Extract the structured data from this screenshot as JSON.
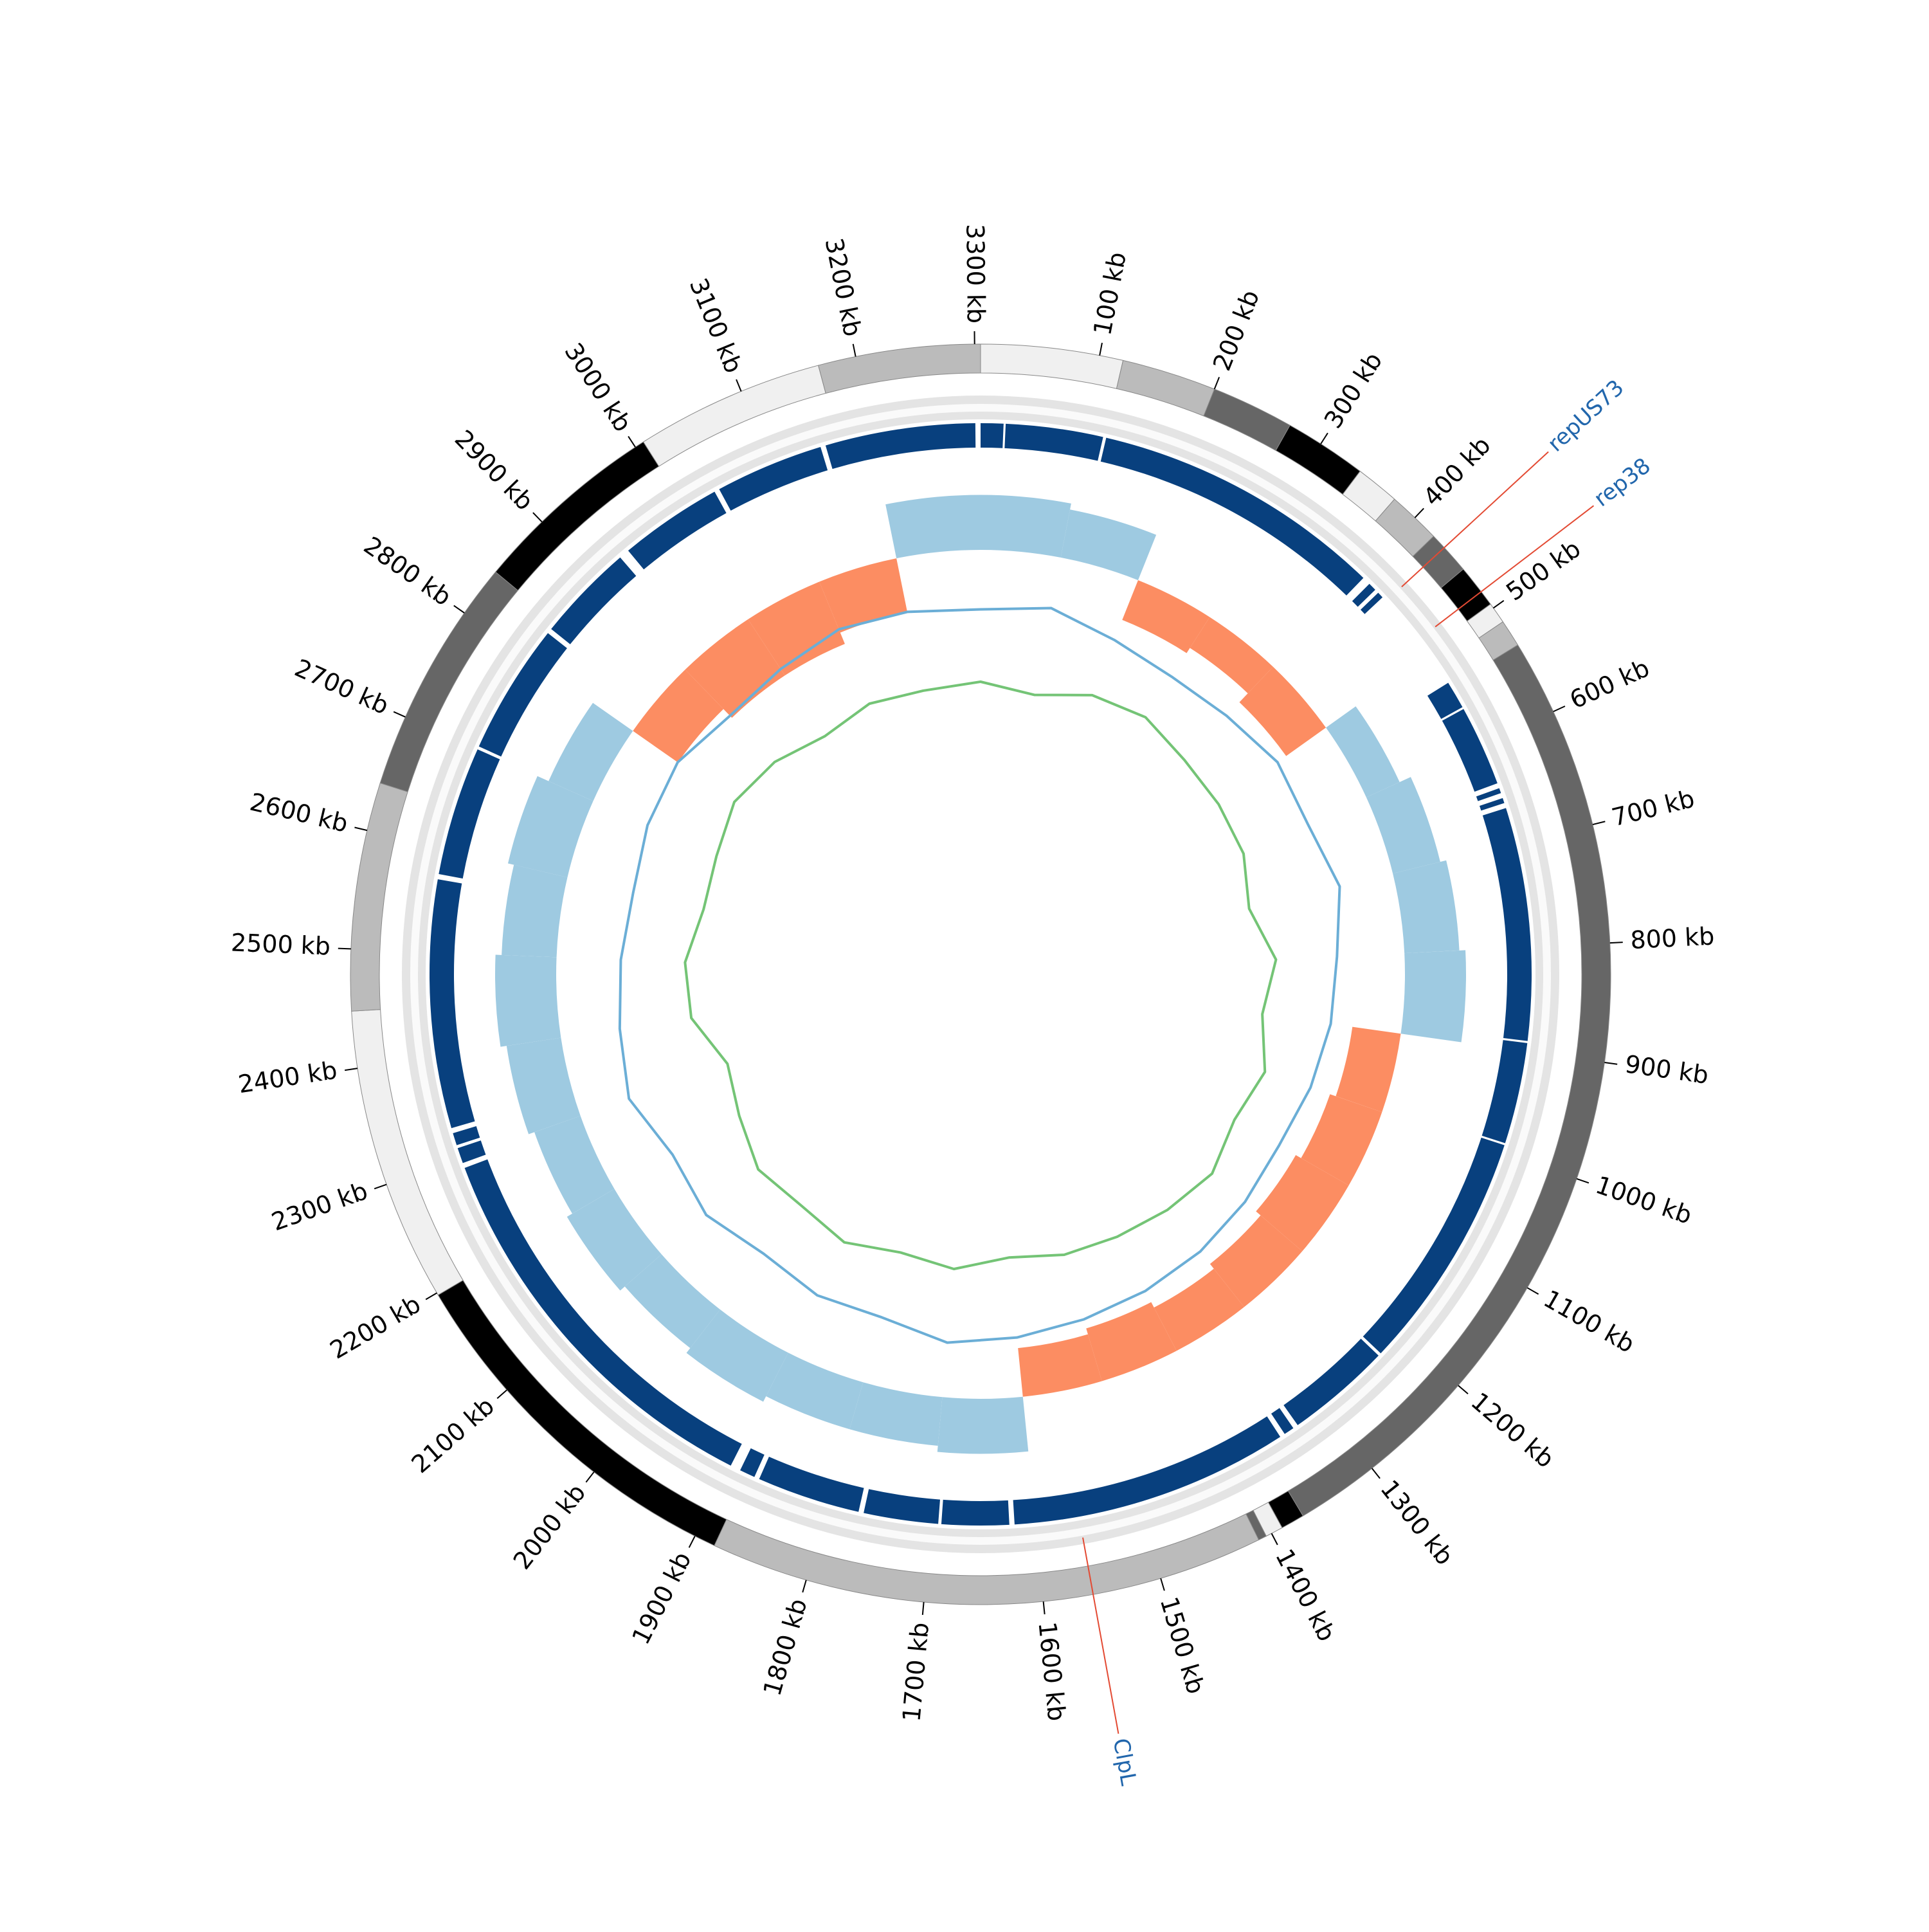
{
  "chart_data": {
    "type": "circos",
    "xlim": [
      0,
      3305
    ],
    "xticks": [
      {
        "value": 100,
        "label": "100 kb"
      },
      {
        "value": 200,
        "label": "200 kb"
      },
      {
        "value": 300,
        "label": "300 kb"
      },
      {
        "value": 400,
        "label": "400 kb"
      },
      {
        "value": 500,
        "label": "500 kb"
      },
      {
        "value": 600,
        "label": "600 kb"
      },
      {
        "value": 700,
        "label": "700 kb"
      },
      {
        "value": 800,
        "label": "800 kb"
      },
      {
        "value": 900,
        "label": "900 kb"
      },
      {
        "value": 1000,
        "label": "1000 kb"
      },
      {
        "value": 1100,
        "label": "1100 kb"
      },
      {
        "value": 1200,
        "label": "1200 kb"
      },
      {
        "value": 1300,
        "label": "1300 kb"
      },
      {
        "value": 1400,
        "label": "1400 kb"
      },
      {
        "value": 1500,
        "label": "1500 kb"
      },
      {
        "value": 1600,
        "label": "1600 kb"
      },
      {
        "value": 1700,
        "label": "1700 kb"
      },
      {
        "value": 1800,
        "label": "1800 kb"
      },
      {
        "value": 1900,
        "label": "1900 kb"
      },
      {
        "value": 2000,
        "label": "2000 kb"
      },
      {
        "value": 2100,
        "label": "2100 kb"
      },
      {
        "value": 2200,
        "label": "2200 kb"
      },
      {
        "value": 2300,
        "label": "2300 kb"
      },
      {
        "value": 2400,
        "label": "2400 kb"
      },
      {
        "value": 2500,
        "label": "2500 kb"
      },
      {
        "value": 2600,
        "label": "2600 kb"
      },
      {
        "value": 2700,
        "label": "2700 kb"
      },
      {
        "value": 2800,
        "label": "2800 kb"
      },
      {
        "value": 2900,
        "label": "2900 kb"
      },
      {
        "value": 3000,
        "label": "3000 kb"
      },
      {
        "value": 3100,
        "label": "3100 kb"
      },
      {
        "value": 3200,
        "label": "3200 kb"
      },
      {
        "value": 3300,
        "label": "3300 kb"
      }
    ],
    "segments": [
      {
        "start": 0,
        "end": 120,
        "color": "#f0f0f0"
      },
      {
        "start": 120,
        "end": 200,
        "color": "#bbbbbb"
      },
      {
        "start": 200,
        "end": 270,
        "color": "#666666"
      },
      {
        "start": 270,
        "end": 340,
        "color": "#000000"
      },
      {
        "start": 340,
        "end": 377,
        "color": "#f0f0f0"
      },
      {
        "start": 377,
        "end": 422,
        "color": "#bbbbbb"
      },
      {
        "start": 422,
        "end": 459,
        "color": "#666666"
      },
      {
        "start": 459,
        "end": 496,
        "color": "#000000"
      },
      {
        "start": 496,
        "end": 514,
        "color": "#f0f0f0"
      },
      {
        "start": 514,
        "end": 537,
        "color": "#bbbbbb"
      },
      {
        "start": 537,
        "end": 1370,
        "color": "#666666"
      },
      {
        "start": 1370,
        "end": 1390,
        "color": "#000000"
      },
      {
        "start": 1390,
        "end": 1405,
        "color": "#f0f0f0"
      },
      {
        "start": 1405,
        "end": 1412,
        "color": "#666666"
      },
      {
        "start": 1412,
        "end": 1882,
        "color": "#bbbbbb"
      },
      {
        "start": 1882,
        "end": 2198,
        "color": "#000000"
      },
      {
        "start": 2198,
        "end": 2448,
        "color": "#f0f0f0"
      },
      {
        "start": 2448,
        "end": 2641,
        "color": "#bbbbbb"
      },
      {
        "start": 2641,
        "end": 2843,
        "color": "#666666"
      },
      {
        "start": 2843,
        "end": 3008,
        "color": "#000000"
      },
      {
        "start": 3008,
        "end": 3168,
        "color": "#f0f0f0"
      },
      {
        "start": 3168,
        "end": 3305,
        "color": "#bbbbbb"
      }
    ],
    "blocks_color": "#08407e",
    "blocks": [
      [
        0,
        22
      ],
      [
        24,
        118
      ],
      [
        121,
        404
      ],
      [
        412,
        420
      ],
      [
        424,
        430
      ],
      [
        533,
        560
      ],
      [
        562,
        640
      ],
      [
        645,
        650
      ],
      [
        655,
        660
      ],
      [
        665,
        890
      ],
      [
        892,
        990
      ],
      [
        992,
        1225
      ],
      [
        1228,
        1330
      ],
      [
        1335,
        1345
      ],
      [
        1350,
        1620
      ],
      [
        1625,
        1690
      ],
      [
        1693,
        1765
      ],
      [
        1770,
        1870
      ],
      [
        1875,
        1890
      ],
      [
        1900,
        2290
      ],
      [
        2295,
        2310
      ],
      [
        2313,
        2325
      ],
      [
        2330,
        2570
      ],
      [
        2575,
        2700
      ],
      [
        2703,
        2830
      ],
      [
        2835,
        2930
      ],
      [
        2940,
        3040
      ],
      [
        3045,
        3150
      ],
      [
        3155,
        3300
      ]
    ],
    "x": [
      0,
      100,
      200,
      300,
      400,
      500,
      600,
      700,
      800,
      900,
      1000,
      1100,
      1200,
      1300,
      1400,
      1500,
      1600,
      1700,
      1800,
      1900,
      2000,
      2100,
      2200,
      2300,
      2400,
      2500,
      2600,
      2700,
      2800,
      2900,
      3000,
      3100,
      3200
    ],
    "skew": {
      "positive_color": "#9ecae1",
      "negative_color": "#fc8d62",
      "values": [
        45,
        40,
        -35,
        -30,
        -40,
        30,
        40,
        45,
        50,
        -40,
        -45,
        -50,
        -45,
        -40,
        -45,
        -40,
        45,
        40,
        40,
        45,
        40,
        45,
        40,
        45,
        50,
        45,
        50,
        40,
        -45,
        -55,
        -55,
        -45,
        45
      ]
    },
    "series": [
      {
        "color": "#6baed6",
        "values": [
          25,
          30,
          22,
          18,
          20,
          25,
          22,
          28,
          20,
          18,
          15,
          12,
          15,
          18,
          20,
          22,
          25,
          28,
          20,
          22,
          18,
          25,
          20,
          30,
          25,
          22,
          20,
          25,
          28,
          22,
          25,
          30,
          28
        ]
      },
      {
        "color": "#74c476",
        "values": [
          -20,
          -25,
          -15,
          -12,
          -18,
          -20,
          -22,
          -30,
          -18,
          -25,
          -15,
          -20,
          -12,
          -15,
          -18,
          -20,
          -25,
          -18,
          -22,
          -15,
          -20,
          -18,
          -28,
          -35,
          -20,
          -18,
          -25,
          -22,
          -15,
          -18,
          -25,
          -20,
          -22
        ]
      }
    ],
    "annotations": [
      {
        "label": "repUS73",
        "position": 435
      },
      {
        "label": "rep38",
        "position": 483
      },
      {
        "label": "ClpL",
        "position": 1558
      }
    ]
  }
}
